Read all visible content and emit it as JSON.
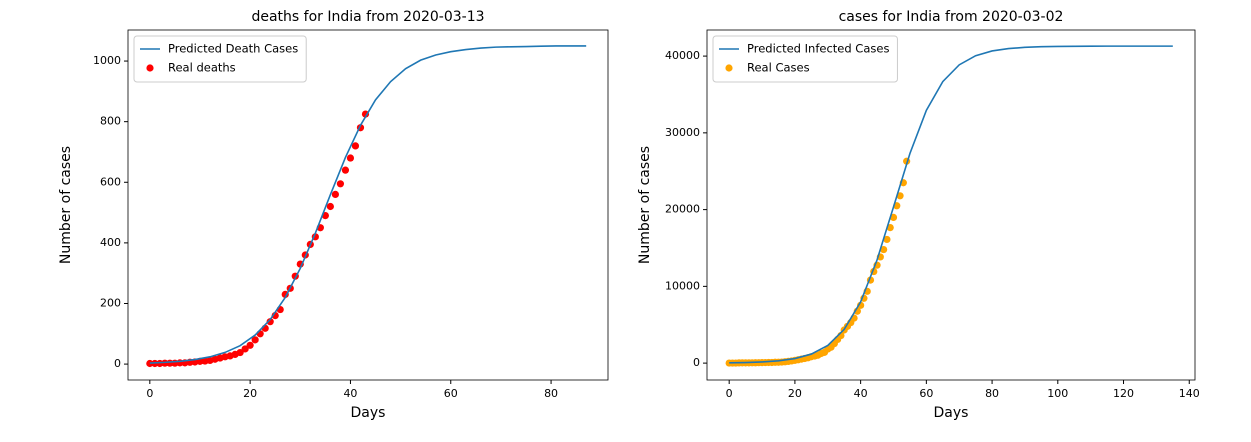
{
  "chart_data": [
    {
      "type": "line",
      "title": "deaths for India from 2020-03-13",
      "xlabel": "Days",
      "ylabel": "Number of cases",
      "xlim": [
        -4.35,
        91.35
      ],
      "ylim": [
        -52.5,
        1102.5
      ],
      "xticks": [
        0,
        20,
        40,
        60,
        80
      ],
      "yticks": [
        0,
        200,
        400,
        600,
        800,
        1000
      ],
      "legend": "upper left",
      "series": [
        {
          "name": "Predicted Death Cases",
          "type": "line",
          "color": "#1f77b4",
          "x": [
            0,
            3,
            6,
            9,
            12,
            15,
            18,
            21,
            24,
            27,
            30,
            33,
            36,
            39,
            42,
            45,
            48,
            51,
            54,
            57,
            60,
            63,
            66,
            69,
            72,
            75,
            78,
            81,
            84,
            87
          ],
          "values": [
            3.5,
            5.7,
            9.2,
            14.9,
            23.9,
            38.5,
            60.7,
            95.7,
            147,
            220,
            316,
            432,
            559,
            682,
            788,
            872,
            932,
            975,
            1003,
            1020,
            1031,
            1038,
            1043,
            1046,
            1047,
            1048,
            1049,
            1050,
            1050,
            1050
          ]
        },
        {
          "name": "Real deaths",
          "type": "scatter",
          "color": "#ff0000",
          "x": [
            0,
            1,
            2,
            3,
            4,
            5,
            6,
            7,
            8,
            9,
            10,
            11,
            12,
            13,
            14,
            15,
            16,
            17,
            18,
            19,
            20,
            21,
            22,
            23,
            24,
            25,
            26,
            27,
            28,
            29,
            30,
            31,
            32,
            33,
            34,
            35,
            36,
            37,
            38,
            39,
            40,
            41,
            42,
            43
          ],
          "values": [
            2,
            2,
            2,
            3,
            3,
            3,
            4,
            4,
            6,
            7,
            9,
            10,
            12,
            16,
            20,
            24,
            27,
            32,
            38,
            50,
            62,
            80,
            100,
            118,
            140,
            160,
            180,
            230,
            250,
            290,
            330,
            360,
            395,
            420,
            450,
            490,
            520,
            560,
            595,
            640,
            680,
            720,
            780,
            825
          ]
        }
      ]
    },
    {
      "type": "line",
      "title": "cases for India from 2020-03-02",
      "xlabel": "Days",
      "ylabel": "Number of cases",
      "xlim": [
        -6.75,
        141.75
      ],
      "ylim": [
        -2200,
        43400
      ],
      "xticks": [
        0,
        20,
        40,
        60,
        80,
        100,
        120,
        140
      ],
      "yticks": [
        0,
        10000,
        20000,
        30000,
        40000
      ],
      "legend": "upper left",
      "series": [
        {
          "name": "Predicted Infected Cases",
          "type": "line",
          "color": "#1f77b4",
          "x": [
            0,
            5,
            10,
            15,
            20,
            25,
            30,
            35,
            40,
            45,
            50,
            55,
            60,
            65,
            70,
            75,
            80,
            85,
            90,
            95,
            100,
            105,
            110,
            115,
            120,
            125,
            130,
            135
          ],
          "values": [
            37,
            73,
            147,
            297,
            593,
            1177,
            2300,
            4389,
            7973,
            13450,
            20340,
            27310,
            32930,
            36680,
            38860,
            40050,
            40670,
            40980,
            41140,
            41220,
            41260,
            41280,
            41290,
            41300,
            41300,
            41300,
            41300,
            41300
          ]
        },
        {
          "name": "Real Cases",
          "type": "scatter",
          "color": "#ffa500",
          "x": [
            0,
            1,
            2,
            3,
            4,
            5,
            6,
            7,
            8,
            9,
            10,
            11,
            12,
            13,
            14,
            15,
            16,
            17,
            18,
            19,
            20,
            21,
            22,
            23,
            24,
            25,
            26,
            27,
            28,
            29,
            30,
            31,
            32,
            33,
            34,
            35,
            36,
            37,
            38,
            39,
            40,
            41,
            42,
            43,
            44,
            45,
            46,
            47,
            48,
            49,
            50,
            51,
            52,
            53,
            54
          ],
          "values": [
            5,
            5,
            6,
            28,
            30,
            31,
            34,
            39,
            43,
            56,
            62,
            73,
            82,
            84,
            110,
            114,
            137,
            173,
            223,
            283,
            360,
            434,
            519,
            606,
            694,
            834,
            918,
            1024,
            1251,
            1397,
            1834,
            2069,
            2547,
            3082,
            3588,
            4314,
            4789,
            5274,
            5865,
            6761,
            7529,
            8447,
            9352,
            10815,
            11933,
            12759,
            13835,
            14792,
            16116,
            17656,
            18985,
            20500,
            21800,
            23500,
            26300
          ]
        }
      ]
    }
  ]
}
